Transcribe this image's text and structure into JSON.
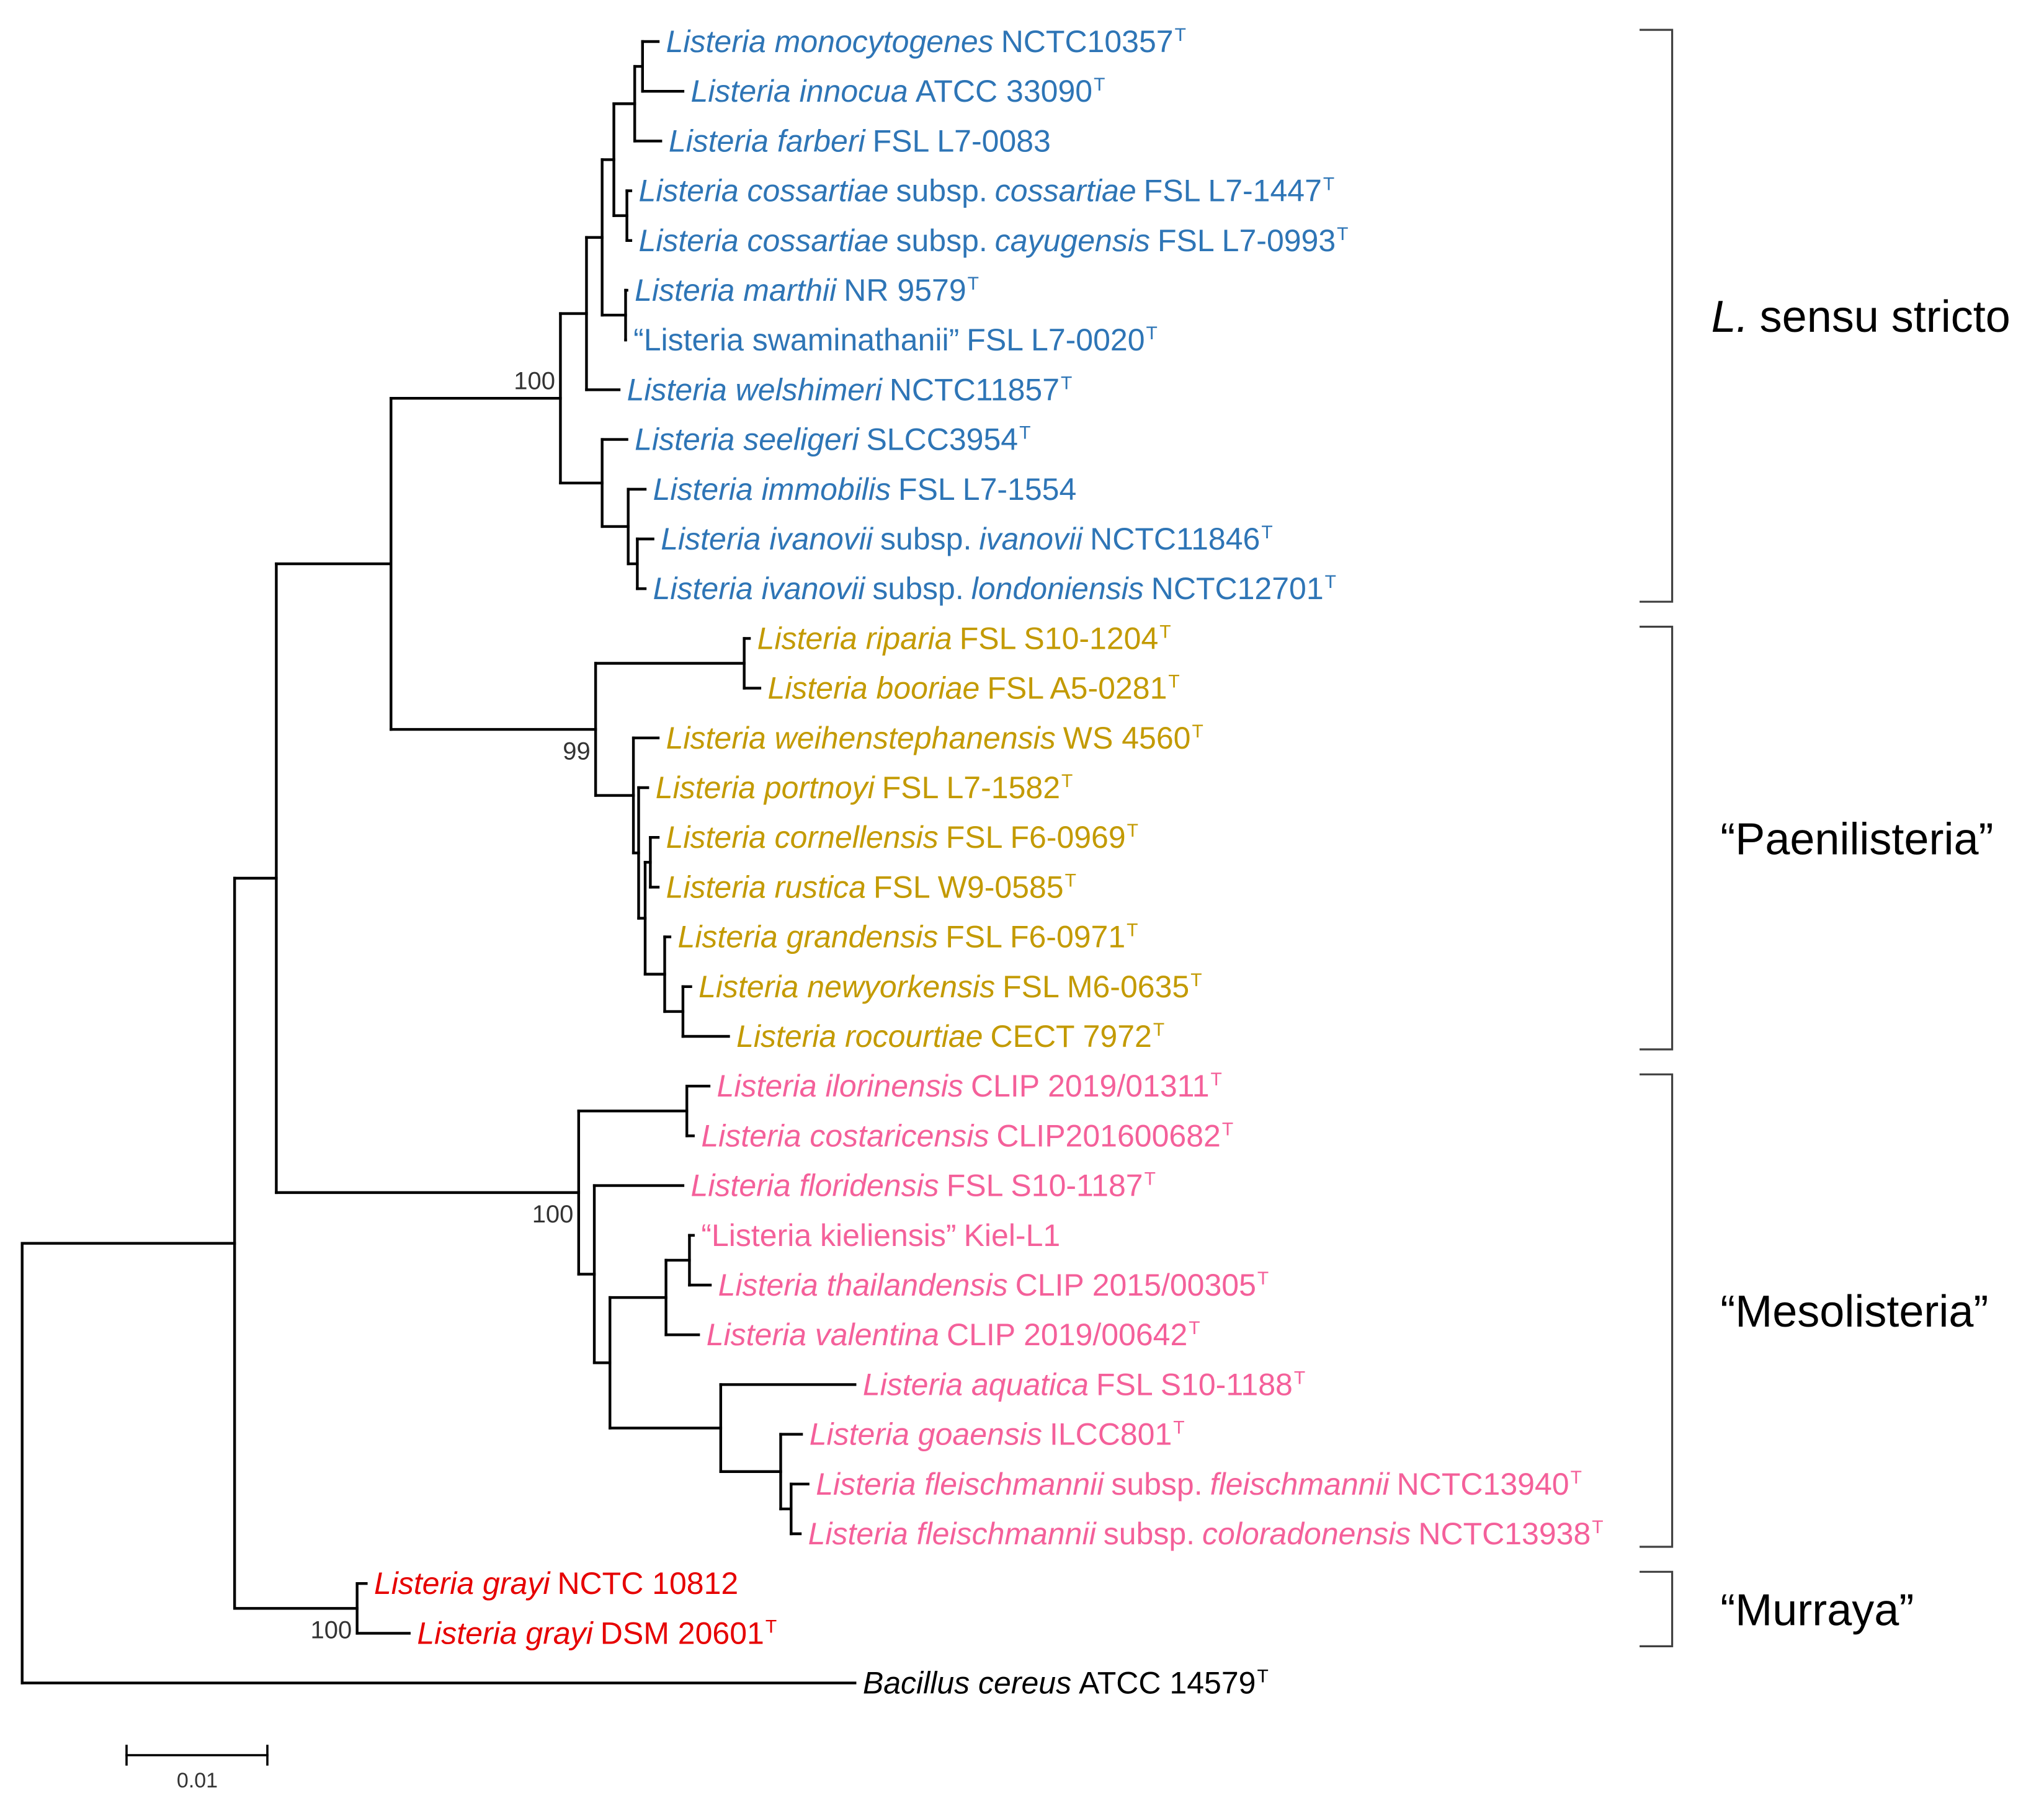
{
  "clades": [
    {
      "label_italic": "L.",
      "label": "sensu stricto",
      "color": "#2E75B6",
      "bootstrap": 100,
      "taxa": [
        {
          "name": "Listeria monocytogenes",
          "strain": "NCTC10357",
          "type_mark": "T"
        },
        {
          "name": "Listeria innocua",
          "strain": "ATCC 33090",
          "type_mark": "T"
        },
        {
          "name": "Listeria farberi",
          "strain": "FSL L7-0083"
        },
        {
          "name": "Listeria cossartiae",
          "subsp_word": "subsp.",
          "subsp": "cossartiae",
          "strain": "FSL L7-1447",
          "type_mark": "T"
        },
        {
          "name": "Listeria cossartiae",
          "subsp_word": "subsp.",
          "subsp": "cayugensis",
          "strain": "FSL L7-0993",
          "type_mark": "T"
        },
        {
          "name": "Listeria marthii",
          "strain": "NR 9579",
          "type_mark": "T"
        },
        {
          "quoted_name": "“Listeria swaminathanii”",
          "strain": "FSL L7-0020",
          "type_mark": "T"
        },
        {
          "name": "Listeria welshimeri",
          "strain": "NCTC11857",
          "type_mark": "T"
        },
        {
          "name": "Listeria seeligeri",
          "strain": "SLCC3954",
          "type_mark": "T"
        },
        {
          "name": "Listeria immobilis",
          "strain": "FSL L7-1554"
        },
        {
          "name": "Listeria ivanovii",
          "subsp_word": "subsp.",
          "subsp": "ivanovii",
          "strain": "NCTC11846",
          "type_mark": "T"
        },
        {
          "name": "Listeria ivanovii",
          "subsp_word": "subsp.",
          "subsp": "londoniensis",
          "strain": "NCTC12701",
          "type_mark": "T"
        }
      ]
    },
    {
      "label": "“Paenilisteria”",
      "color": "#C39A00",
      "bootstrap": 99,
      "taxa": [
        {
          "name": "Listeria riparia",
          "strain": "FSL S10-1204",
          "type_mark": "T"
        },
        {
          "name": "Listeria booriae",
          "strain": "FSL A5-0281",
          "type_mark": "T"
        },
        {
          "name": "Listeria weihenstephanensis",
          "strain": "WS 4560",
          "type_mark": "T"
        },
        {
          "name": "Listeria portnoyi",
          "strain": "FSL L7-1582",
          "type_mark": "T"
        },
        {
          "name": "Listeria cornellensis",
          "strain": "FSL F6-0969",
          "type_mark": "T"
        },
        {
          "name": "Listeria rustica",
          "strain": "FSL W9-0585",
          "type_mark": "T"
        },
        {
          "name": "Listeria grandensis",
          "strain": "FSL F6-0971",
          "type_mark": "T"
        },
        {
          "name": "Listeria newyorkensis",
          "strain": "FSL M6-0635",
          "type_mark": "T"
        },
        {
          "name": "Listeria rocourtiae",
          "strain": "CECT 7972",
          "type_mark": "T"
        }
      ]
    },
    {
      "label": "“Mesolisteria”",
      "color": "#F4609A",
      "bootstrap": 100,
      "taxa": [
        {
          "name": "Listeria ilorinensis",
          "strain": "CLIP 2019/01311",
          "type_mark": "T"
        },
        {
          "name": "Listeria costaricensis",
          "strain": "CLIP201600682",
          "type_mark": "T"
        },
        {
          "name": "Listeria floridensis",
          "strain": "FSL S10-1187",
          "type_mark": "T"
        },
        {
          "quoted_name": "“Listeria kieliensis”",
          "strain": "Kiel-L1"
        },
        {
          "name": "Listeria thailandensis",
          "strain": "CLIP 2015/00305",
          "type_mark": "T"
        },
        {
          "name": "Listeria valentina",
          "strain": "CLIP 2019/00642",
          "type_mark": "T"
        },
        {
          "name": "Listeria aquatica",
          "strain": "FSL S10-1188",
          "type_mark": "T"
        },
        {
          "name": "Listeria goaensis",
          "strain": "ILCC801",
          "type_mark": "T"
        },
        {
          "name": "Listeria fleischmannii",
          "subsp_word": "subsp.",
          "subsp": "fleischmannii",
          "strain": "NCTC13940",
          "type_mark": "T"
        },
        {
          "name": "Listeria fleischmannii",
          "subsp_word": "subsp.",
          "subsp": "coloradonensis",
          "strain": "NCTC13938",
          "type_mark": "T"
        }
      ]
    },
    {
      "label": "“Murraya”",
      "color": "#E60000",
      "bootstrap": 100,
      "taxa": [
        {
          "name": "Listeria grayi",
          "strain": "NCTC 10812"
        },
        {
          "name": "Listeria grayi",
          "strain": "DSM 20601",
          "type_mark": "T"
        }
      ]
    }
  ],
  "outgroup": {
    "color": "#000000",
    "taxon": {
      "name": "Bacillus cereus",
      "strain": "ATCC 14579",
      "type_mark": "T"
    }
  },
  "scale_bar": {
    "label": "0.01"
  }
}
